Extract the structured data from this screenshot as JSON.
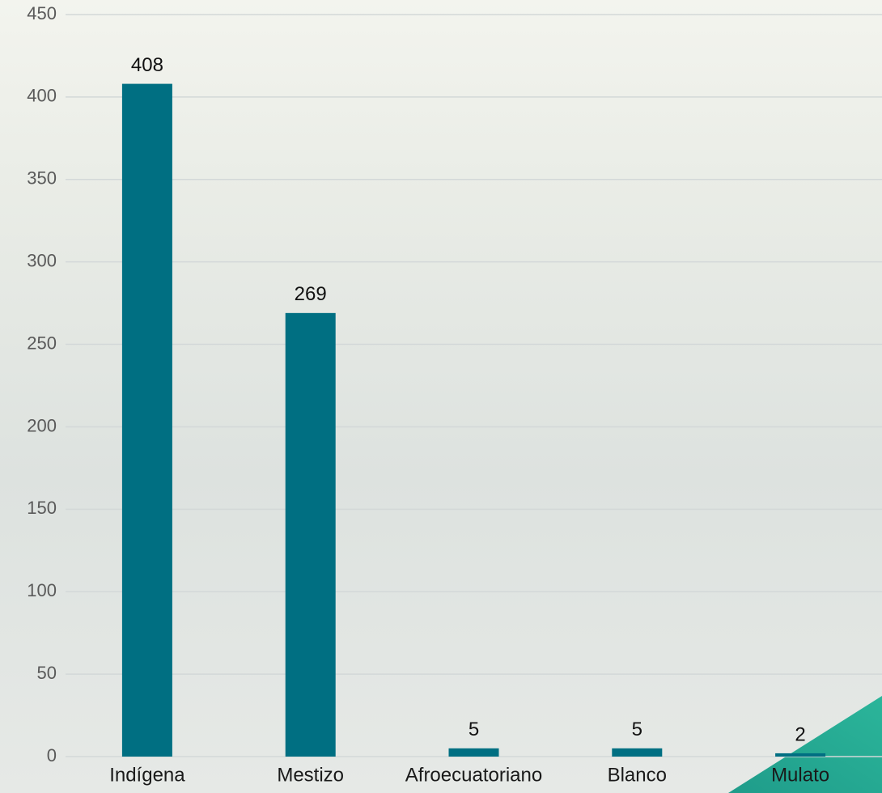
{
  "chart_data": {
    "type": "bar",
    "categories": [
      "Indígena",
      "Mestizo",
      "Afroecuatoriano",
      "Blanco",
      "Mulato"
    ],
    "values": [
      408,
      269,
      5,
      5,
      2
    ],
    "color": "#006f82",
    "ylim": [
      0,
      450
    ],
    "yticks": [
      0,
      50,
      100,
      150,
      200,
      250,
      300,
      350,
      400,
      450
    ],
    "grid": true
  }
}
